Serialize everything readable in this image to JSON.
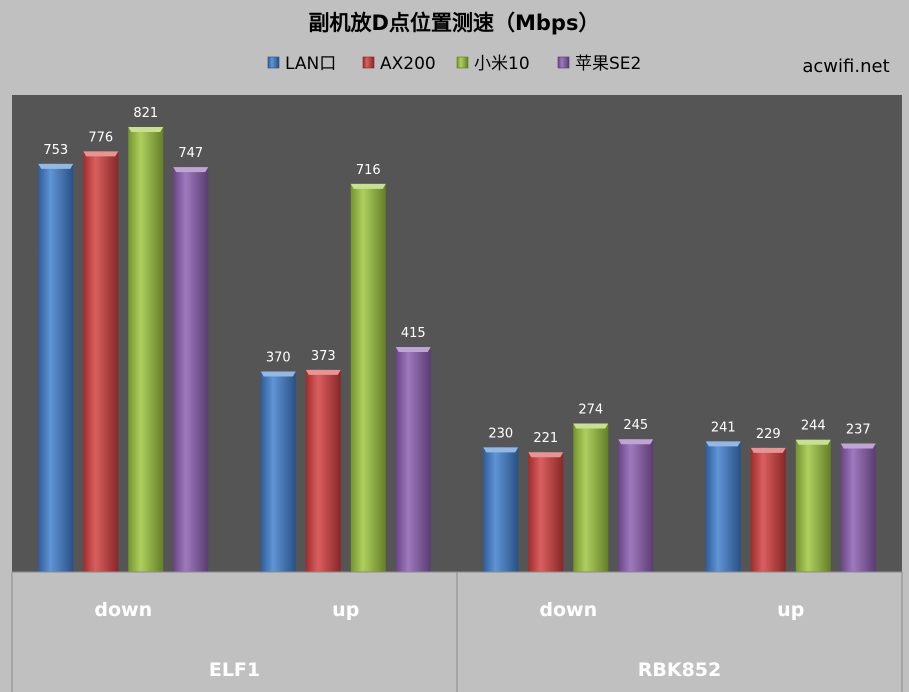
{
  "chart_data": {
    "type": "bar",
    "title": "副机放D点位置测速（Mbps）",
    "watermark": "acwifi.net",
    "groups": [
      {
        "name": "ELF1",
        "categories": [
          "down",
          "up"
        ]
      },
      {
        "name": "RBK852",
        "categories": [
          "down",
          "up"
        ]
      }
    ],
    "categories": [
      "down",
      "up",
      "down",
      "up"
    ],
    "series": [
      {
        "name": "LAN口",
        "color": "#3d7ccc",
        "values": [
          753,
          370,
          230,
          241
        ]
      },
      {
        "name": "AX200",
        "color": "#d23c3c",
        "values": [
          776,
          373,
          221,
          229
        ]
      },
      {
        "name": "小米10",
        "color": "#9cc43c",
        "values": [
          821,
          716,
          274,
          244
        ]
      },
      {
        "name": "苹果SE2",
        "color": "#8a5cb0",
        "values": [
          747,
          415,
          245,
          237
        ]
      }
    ],
    "ylim": [
      0,
      880
    ],
    "grid": false,
    "legend_position": "top",
    "plot_background": "#555555"
  }
}
